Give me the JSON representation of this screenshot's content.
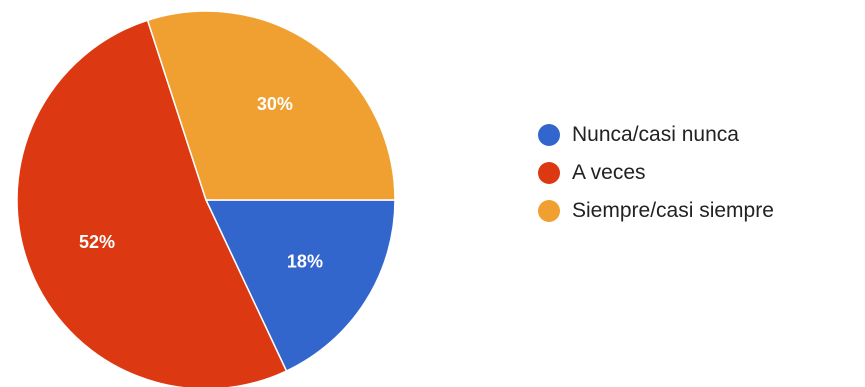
{
  "chart_data": {
    "type": "pie",
    "slices": [
      {
        "label": "Nunca/casi nunca",
        "value": 18,
        "percent_label": "18%",
        "color": "#3366cc"
      },
      {
        "label": "A veces",
        "value": 52,
        "percent_label": "52%",
        "color": "#dc3912"
      },
      {
        "label": "Siempre/casi siempre",
        "value": 30,
        "percent_label": "30%",
        "color": "#f0a030"
      }
    ],
    "start_angle_deg": 90,
    "direction": "clockwise",
    "legend_position": "right"
  }
}
